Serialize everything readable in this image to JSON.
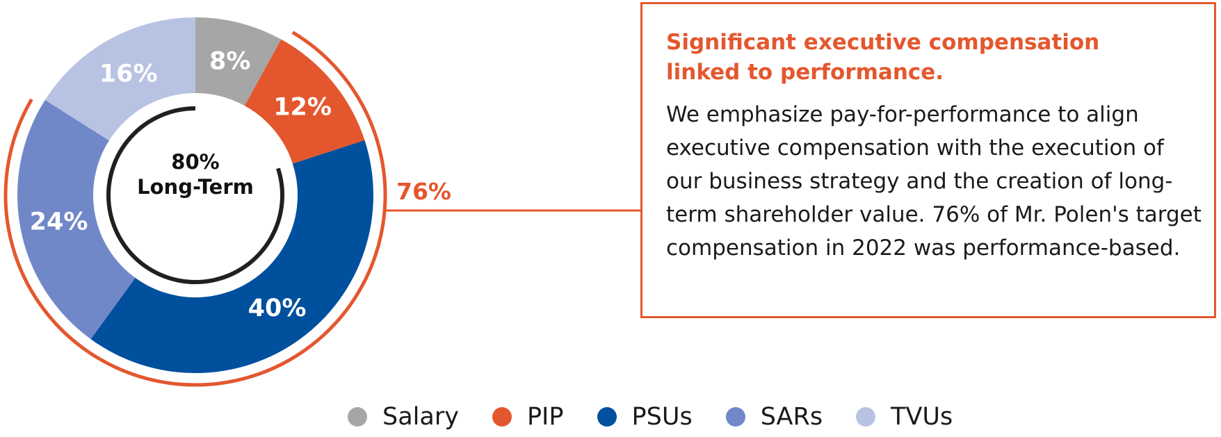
{
  "chart_data": {
    "type": "donut",
    "series": [
      {
        "name": "Salary",
        "value": 8,
        "label": "8%",
        "color": "#a6a6a6"
      },
      {
        "name": "PIP",
        "value": 12,
        "label": "12%",
        "color": "#e4572e"
      },
      {
        "name": "PSUs",
        "value": 40,
        "label": "40%",
        "color": "#00509e"
      },
      {
        "name": "SARs",
        "value": 24,
        "label": "24%",
        "color": "#7188c8"
      },
      {
        "name": "TVUs",
        "value": 16,
        "label": "16%",
        "color": "#b8c3e3"
      }
    ],
    "inner_arc": {
      "value": 80,
      "text_line1": "80%",
      "text_line2": "Long-Term"
    },
    "outer_bracket": {
      "value": 76,
      "label": "76%",
      "color": "#e4572e"
    },
    "legend_position": "bottom"
  },
  "callout": {
    "title": "Significant executive compensation linked to performance.",
    "body": "We emphasize pay-for-performance to align executive compensation with the execution of  our business strategy and the creation of long-term shareholder value. 76% of Mr. Polen's target compensation in 2022 was performance-based."
  },
  "legend": [
    {
      "label": "Salary",
      "color": "#a6a6a6"
    },
    {
      "label": "PIP",
      "color": "#e4572e"
    },
    {
      "label": "PSUs",
      "color": "#00509e"
    },
    {
      "label": "SARs",
      "color": "#7188c8"
    },
    {
      "label": "TVUs",
      "color": "#b8c3e3"
    }
  ]
}
